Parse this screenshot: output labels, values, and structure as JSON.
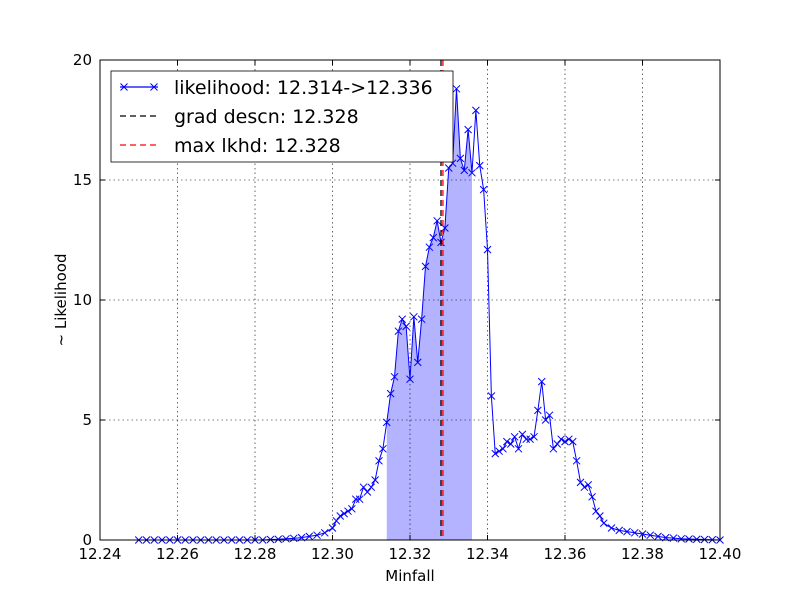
{
  "chart_data": {
    "type": "line",
    "title": "",
    "xlabel": "Minfall",
    "ylabel": "~ Likelihood",
    "xlim": [
      12.24,
      12.4
    ],
    "ylim": [
      0,
      20
    ],
    "x_ticks": [
      12.24,
      12.26,
      12.28,
      12.3,
      12.32,
      12.34,
      12.36,
      12.38,
      12.4
    ],
    "x_tick_labels": [
      "12.24",
      "12.26",
      "12.28",
      "12.30",
      "12.32",
      "12.34",
      "12.36",
      "12.38",
      "12.40"
    ],
    "y_ticks": [
      0,
      5,
      10,
      15,
      20
    ],
    "y_tick_labels": [
      "0",
      "5",
      "10",
      "15",
      "20"
    ],
    "grid": true,
    "legend_position": "top-left",
    "colors": {
      "likelihood": "#0000ff",
      "fill": "#b3b3ff",
      "grad_descn": "#000000",
      "max_lkhd": "#ff0000"
    },
    "shaded_range": [
      12.314,
      12.336
    ],
    "series": [
      {
        "name": "likelihood: 12.314->12.336",
        "marker": "x",
        "x": [
          12.25,
          12.252,
          12.254,
          12.256,
          12.258,
          12.26,
          12.262,
          12.264,
          12.266,
          12.268,
          12.27,
          12.272,
          12.274,
          12.276,
          12.278,
          12.28,
          12.282,
          12.284,
          12.286,
          12.288,
          12.29,
          12.292,
          12.294,
          12.296,
          12.298,
          12.3,
          12.301,
          12.302,
          12.303,
          12.304,
          12.305,
          12.306,
          12.307,
          12.308,
          12.309,
          12.31,
          12.311,
          12.312,
          12.313,
          12.314,
          12.315,
          12.316,
          12.317,
          12.318,
          12.319,
          12.32,
          12.321,
          12.322,
          12.323,
          12.324,
          12.325,
          12.326,
          12.327,
          12.328,
          12.329,
          12.33,
          12.331,
          12.332,
          12.333,
          12.334,
          12.335,
          12.336,
          12.337,
          12.338,
          12.339,
          12.34,
          12.341,
          12.342,
          12.343,
          12.344,
          12.345,
          12.346,
          12.347,
          12.348,
          12.349,
          12.35,
          12.351,
          12.352,
          12.353,
          12.354,
          12.355,
          12.356,
          12.357,
          12.358,
          12.359,
          12.36,
          12.361,
          12.362,
          12.363,
          12.364,
          12.365,
          12.366,
          12.367,
          12.368,
          12.369,
          12.37,
          12.372,
          12.374,
          12.376,
          12.378,
          12.38,
          12.382,
          12.384,
          12.386,
          12.388,
          12.39,
          12.392,
          12.394,
          12.396,
          12.398,
          12.4
        ],
        "values": [
          0,
          0,
          0,
          0,
          0,
          0,
          0,
          0,
          0,
          0,
          0,
          0,
          0,
          0,
          0,
          0,
          0,
          0.02,
          0.03,
          0.05,
          0.07,
          0.1,
          0.15,
          0.2,
          0.3,
          0.5,
          0.8,
          1.0,
          1.1,
          1.2,
          1.3,
          1.7,
          1.7,
          2.2,
          2.0,
          2.2,
          2.5,
          3.3,
          3.8,
          4.9,
          6.1,
          6.8,
          8.7,
          9.2,
          8.9,
          6.7,
          9.3,
          7.4,
          9.2,
          11.4,
          12.2,
          12.6,
          13.3,
          12.4,
          13.0,
          15.5,
          15.7,
          18.8,
          15.9,
          15.4,
          17.1,
          15.3,
          17.9,
          15.6,
          14.6,
          12.1,
          6.0,
          3.6,
          3.7,
          3.8,
          4.1,
          4.0,
          4.3,
          3.8,
          4.4,
          4.2,
          4.2,
          4.3,
          5.4,
          6.6,
          5.0,
          5.2,
          3.8,
          4.0,
          4.2,
          4.1,
          4.2,
          4.1,
          3.3,
          2.4,
          2.2,
          2.3,
          1.8,
          1.2,
          1.0,
          0.7,
          0.5,
          0.4,
          0.35,
          0.3,
          0.25,
          0.2,
          0.15,
          0.1,
          0.08,
          0.05,
          0.04,
          0.03,
          0.02,
          0.01,
          0
        ]
      },
      {
        "name": "grad descn: 12.328",
        "type": "vline",
        "x": 12.328
      },
      {
        "name": "max lkhd: 12.328",
        "type": "vline",
        "x": 12.3285
      }
    ]
  }
}
